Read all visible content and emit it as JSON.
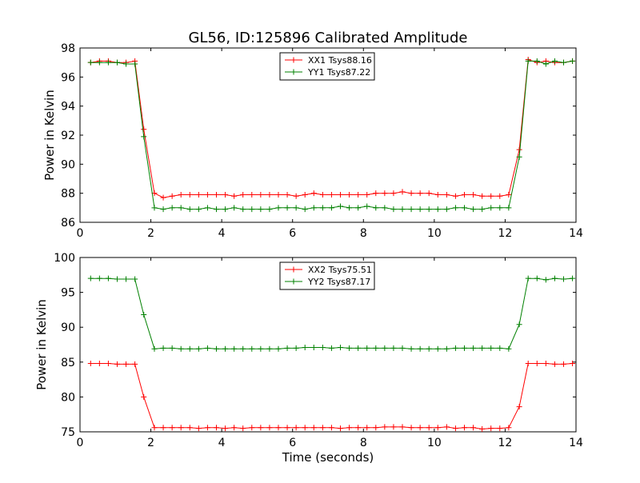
{
  "figure": {
    "title": "GL56, ID:125896 Calibrated Amplitude"
  },
  "chart_data": [
    {
      "type": "line",
      "title": "GL56, ID:125896 Calibrated Amplitude",
      "xlabel": "",
      "ylabel": "Power in Kelvin",
      "xlim": [
        0,
        14
      ],
      "ylim": [
        86,
        98
      ],
      "xticks": [
        0,
        2,
        4,
        6,
        8,
        10,
        12,
        14
      ],
      "yticks": [
        86,
        88,
        90,
        92,
        94,
        96,
        98
      ],
      "grid": false,
      "legend": "top-center",
      "x": [
        0.3,
        0.55,
        0.8,
        1.05,
        1.3,
        1.55,
        1.8,
        2.1,
        2.35,
        2.6,
        2.85,
        3.1,
        3.35,
        3.6,
        3.85,
        4.1,
        4.35,
        4.6,
        4.85,
        5.1,
        5.35,
        5.6,
        5.85,
        6.1,
        6.35,
        6.6,
        6.85,
        7.1,
        7.35,
        7.6,
        7.85,
        8.1,
        8.35,
        8.6,
        8.85,
        9.1,
        9.35,
        9.6,
        9.85,
        10.1,
        10.35,
        10.6,
        10.85,
        11.1,
        11.35,
        11.6,
        11.85,
        12.1,
        12.4,
        12.65,
        12.9,
        13.15,
        13.4,
        13.65,
        13.9
      ],
      "series": [
        {
          "name": "XX1 Tsys88.16",
          "color": "#ff0000",
          "values": [
            97.0,
            97.1,
            97.1,
            97.0,
            97.0,
            97.1,
            92.4,
            88.0,
            87.7,
            87.8,
            87.9,
            87.9,
            87.9,
            87.9,
            87.9,
            87.9,
            87.8,
            87.9,
            87.9,
            87.9,
            87.9,
            87.9,
            87.9,
            87.8,
            87.9,
            88.0,
            87.9,
            87.9,
            87.9,
            87.9,
            87.9,
            87.9,
            88.0,
            88.0,
            88.0,
            88.1,
            88.0,
            88.0,
            88.0,
            87.9,
            87.9,
            87.8,
            87.9,
            87.9,
            87.8,
            87.8,
            87.8,
            87.9,
            91.0,
            97.2,
            97.0,
            97.1,
            97.0,
            97.0,
            97.1
          ]
        },
        {
          "name": "YY1 Tsys87.22",
          "color": "#008000",
          "values": [
            97.0,
            97.0,
            97.0,
            97.0,
            96.9,
            96.9,
            91.9,
            87.0,
            86.9,
            87.0,
            87.0,
            86.9,
            86.9,
            87.0,
            86.9,
            86.9,
            87.0,
            86.9,
            86.9,
            86.9,
            86.9,
            87.0,
            87.0,
            87.0,
            86.9,
            87.0,
            87.0,
            87.0,
            87.1,
            87.0,
            87.0,
            87.1,
            87.0,
            87.0,
            86.9,
            86.9,
            86.9,
            86.9,
            86.9,
            86.9,
            86.9,
            87.0,
            87.0,
            86.9,
            86.9,
            87.0,
            87.0,
            87.0,
            90.5,
            97.1,
            97.1,
            96.9,
            97.1,
            97.0,
            97.1
          ]
        }
      ]
    },
    {
      "type": "line",
      "title": "",
      "xlabel": "Time (seconds)",
      "ylabel": "Power in Kelvin",
      "xlim": [
        0,
        14
      ],
      "ylim": [
        75,
        100
      ],
      "xticks": [
        0,
        2,
        4,
        6,
        8,
        10,
        12,
        14
      ],
      "yticks": [
        75,
        80,
        85,
        90,
        95,
        100
      ],
      "grid": false,
      "legend": "top-center",
      "x": [
        0.3,
        0.55,
        0.8,
        1.05,
        1.3,
        1.55,
        1.8,
        2.1,
        2.35,
        2.6,
        2.85,
        3.1,
        3.35,
        3.6,
        3.85,
        4.1,
        4.35,
        4.6,
        4.85,
        5.1,
        5.35,
        5.6,
        5.85,
        6.1,
        6.35,
        6.6,
        6.85,
        7.1,
        7.35,
        7.6,
        7.85,
        8.1,
        8.35,
        8.6,
        8.85,
        9.1,
        9.35,
        9.6,
        9.85,
        10.1,
        10.35,
        10.6,
        10.85,
        11.1,
        11.35,
        11.6,
        11.85,
        12.1,
        12.4,
        12.65,
        12.9,
        13.15,
        13.4,
        13.65,
        13.9
      ],
      "series": [
        {
          "name": "XX2 Tsys75.51",
          "color": "#ff0000",
          "values": [
            84.8,
            84.8,
            84.8,
            84.7,
            84.7,
            84.7,
            80.0,
            75.6,
            75.6,
            75.6,
            75.6,
            75.6,
            75.5,
            75.6,
            75.6,
            75.5,
            75.6,
            75.5,
            75.6,
            75.6,
            75.6,
            75.6,
            75.6,
            75.6,
            75.6,
            75.6,
            75.6,
            75.6,
            75.5,
            75.6,
            75.6,
            75.6,
            75.6,
            75.7,
            75.7,
            75.7,
            75.6,
            75.6,
            75.6,
            75.6,
            75.7,
            75.5,
            75.6,
            75.6,
            75.4,
            75.5,
            75.5,
            75.6,
            78.6,
            84.8,
            84.8,
            84.8,
            84.7,
            84.7,
            84.8
          ]
        },
        {
          "name": "YY2 Tsys87.17",
          "color": "#008000",
          "values": [
            97.0,
            97.0,
            97.0,
            96.9,
            96.9,
            96.9,
            91.8,
            86.9,
            87.0,
            87.0,
            86.9,
            86.9,
            86.9,
            87.0,
            86.9,
            86.9,
            86.9,
            86.9,
            86.9,
            86.9,
            86.9,
            86.9,
            87.0,
            87.0,
            87.1,
            87.1,
            87.1,
            87.0,
            87.1,
            87.0,
            87.0,
            87.0,
            87.0,
            87.0,
            87.0,
            87.0,
            86.9,
            86.9,
            86.9,
            86.9,
            86.9,
            87.0,
            87.0,
            87.0,
            87.0,
            87.0,
            87.0,
            86.9,
            90.4,
            97.0,
            97.0,
            96.8,
            97.0,
            96.9,
            97.0
          ]
        }
      ]
    }
  ]
}
